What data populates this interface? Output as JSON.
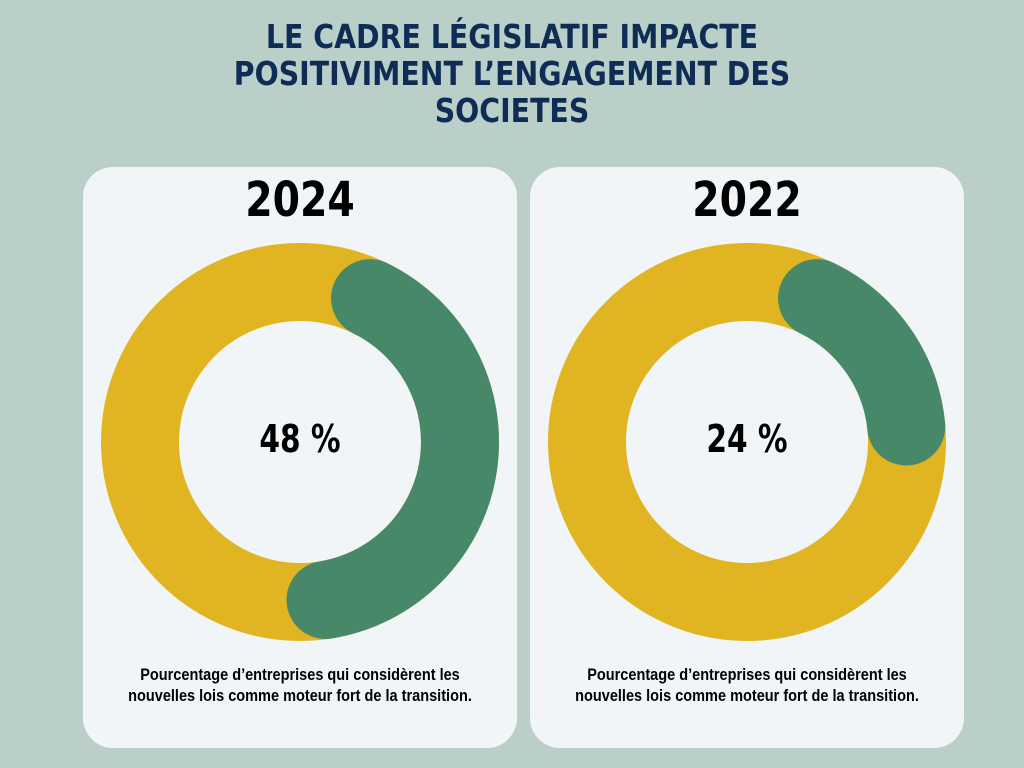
{
  "title": "LE CADRE LÉGISLATIF IMPACTE POSITIVIMENT L’ENGAGEMENT DES SOCIETES",
  "colors": {
    "background": "#b9cfc7",
    "card": "#f1f5f8",
    "title": "#0e2c55",
    "highlight": "#478868",
    "remainder": "#e0b521"
  },
  "chart_data": [
    {
      "type": "pie",
      "donut": true,
      "title": "2024",
      "value": 48,
      "label": "48 %",
      "categories": [
        "",
        ""
      ],
      "values": [
        48,
        52
      ],
      "caption": "Pourcentage d’entreprises qui considèrent les nouvelles lois comme moteur fort de la transition."
    },
    {
      "type": "pie",
      "donut": true,
      "title": "2022",
      "value": 24,
      "label": "24 %",
      "categories": [
        "",
        ""
      ],
      "values": [
        24,
        76
      ],
      "caption": "Pourcentage d’entreprises qui considèrent les nouvelles lois comme moteur fort de la transition."
    }
  ]
}
